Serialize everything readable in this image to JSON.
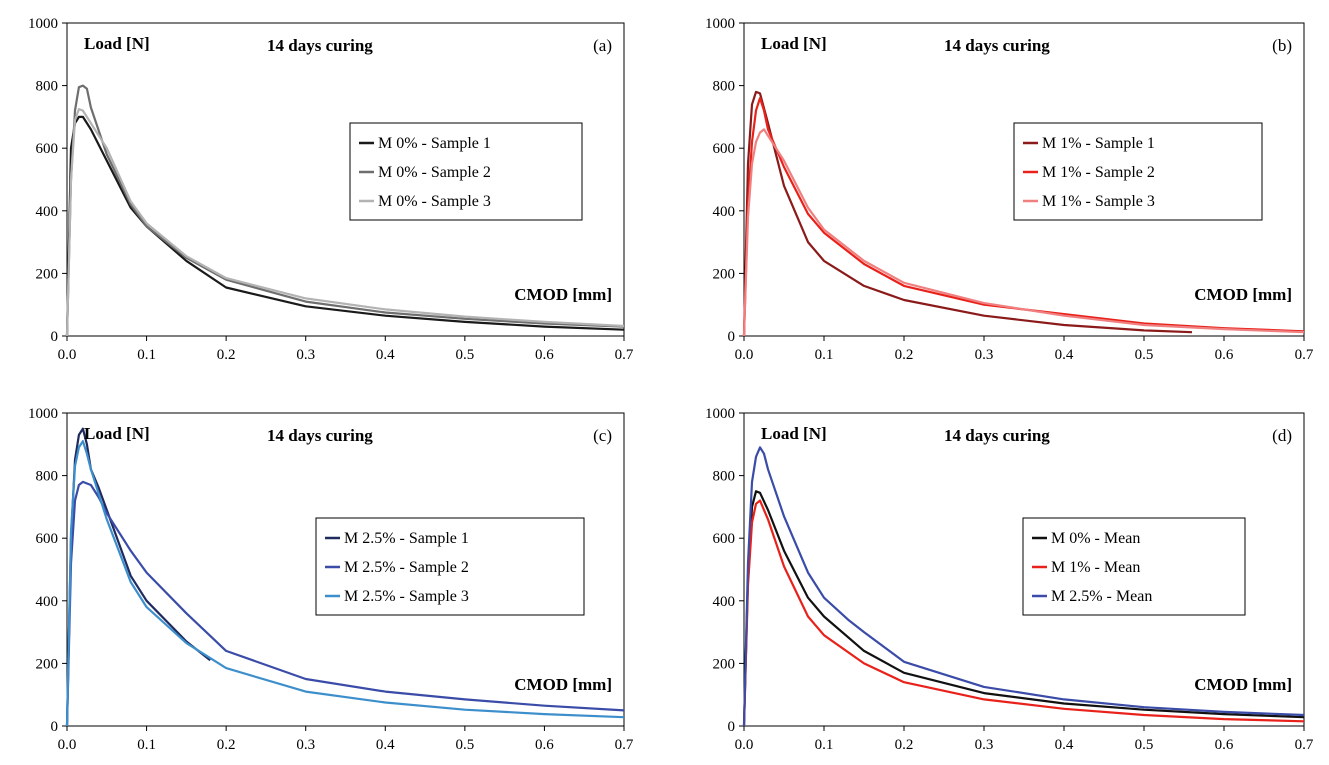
{
  "chart_data": [
    {
      "type": "line",
      "panel": "(a)",
      "title": "14 days curing",
      "ylabel": "Load [N]",
      "xlabel": "CMOD [mm]",
      "xlim": [
        0,
        0.7
      ],
      "ylim": [
        0,
        1000
      ],
      "xticks": [
        "0.0",
        "0.1",
        "0.2",
        "0.3",
        "0.4",
        "0.5",
        "0.6",
        "0.7"
      ],
      "yticks": [
        "0",
        "200",
        "400",
        "600",
        "800",
        "1000"
      ],
      "grid": false,
      "legend": "right-middle",
      "series": [
        {
          "name": "M 0% - Sample 1",
          "color": "#1a1a1a",
          "x": [
            0,
            0.005,
            0.01,
            0.015,
            0.02,
            0.03,
            0.05,
            0.08,
            0.1,
            0.15,
            0.2,
            0.3,
            0.4,
            0.5,
            0.6,
            0.7
          ],
          "y": [
            0,
            600,
            680,
            700,
            700,
            660,
            560,
            410,
            350,
            240,
            155,
            95,
            65,
            45,
            30,
            20
          ]
        },
        {
          "name": "M 0% - Sample 2",
          "color": "#6e6e6e",
          "x": [
            0,
            0.005,
            0.01,
            0.015,
            0.02,
            0.025,
            0.03,
            0.05,
            0.08,
            0.1,
            0.15,
            0.2,
            0.3,
            0.4,
            0.5,
            0.6,
            0.7
          ],
          "y": [
            0,
            500,
            720,
            795,
            800,
            790,
            730,
            580,
            420,
            350,
            250,
            180,
            110,
            75,
            55,
            40,
            30
          ]
        },
        {
          "name": "M 0% - Sample 3",
          "color": "#b3b3b3",
          "x": [
            0,
            0.005,
            0.01,
            0.015,
            0.02,
            0.03,
            0.04,
            0.05,
            0.08,
            0.1,
            0.15,
            0.2,
            0.3,
            0.4,
            0.5,
            0.6,
            0.7
          ],
          "y": [
            0,
            500,
            690,
            725,
            720,
            680,
            640,
            600,
            430,
            360,
            255,
            185,
            120,
            85,
            62,
            45,
            32
          ]
        }
      ]
    },
    {
      "type": "line",
      "panel": "(b)",
      "title": "14 days curing",
      "ylabel": "Load [N]",
      "xlabel": "CMOD [mm]",
      "xlim": [
        0,
        0.7
      ],
      "ylim": [
        0,
        1000
      ],
      "xticks": [
        "0.0",
        "0.1",
        "0.2",
        "0.3",
        "0.4",
        "0.5",
        "0.6",
        "0.7"
      ],
      "yticks": [
        "0",
        "200",
        "400",
        "600",
        "800",
        "1000"
      ],
      "grid": false,
      "legend": "right-middle",
      "series": [
        {
          "name": "M 1% - Sample 1",
          "color": "#8b1a1a",
          "x": [
            0,
            0.005,
            0.01,
            0.015,
            0.02,
            0.03,
            0.05,
            0.08,
            0.1,
            0.15,
            0.2,
            0.3,
            0.4,
            0.5,
            0.56
          ],
          "y": [
            0,
            550,
            740,
            780,
            775,
            680,
            480,
            300,
            240,
            160,
            115,
            65,
            35,
            18,
            12
          ]
        },
        {
          "name": "M 1% - Sample 2",
          "color": "#e8221b",
          "x": [
            0,
            0.005,
            0.01,
            0.015,
            0.02,
            0.025,
            0.03,
            0.05,
            0.08,
            0.1,
            0.15,
            0.2,
            0.3,
            0.4,
            0.5,
            0.6,
            0.7
          ],
          "y": [
            0,
            420,
            620,
            720,
            760,
            720,
            660,
            540,
            390,
            330,
            230,
            160,
            100,
            70,
            40,
            25,
            15
          ]
        },
        {
          "name": "M 1% - Sample 3",
          "color": "#f08080",
          "x": [
            0,
            0.005,
            0.01,
            0.015,
            0.02,
            0.025,
            0.03,
            0.05,
            0.08,
            0.1,
            0.15,
            0.2,
            0.3,
            0.4,
            0.5,
            0.6,
            0.7
          ],
          "y": [
            0,
            380,
            550,
            620,
            650,
            660,
            640,
            560,
            410,
            340,
            240,
            170,
            105,
            65,
            35,
            22,
            12
          ]
        }
      ]
    },
    {
      "type": "line",
      "panel": "(c)",
      "title": "14 days curing",
      "ylabel": "Load [N]",
      "xlabel": "CMOD [mm]",
      "xlim": [
        0,
        0.7
      ],
      "ylim": [
        0,
        1000
      ],
      "xticks": [
        "0.0",
        "0.1",
        "0.2",
        "0.3",
        "0.4",
        "0.5",
        "0.6",
        "0.7"
      ],
      "yticks": [
        "0",
        "200",
        "400",
        "600",
        "800",
        "1000"
      ],
      "grid": false,
      "legend": "right-middle",
      "series": [
        {
          "name": "M 2.5% - Sample 1",
          "color": "#1f2a5e",
          "x": [
            0,
            0.005,
            0.01,
            0.015,
            0.02,
            0.025,
            0.03,
            0.04,
            0.05,
            0.08,
            0.1,
            0.15,
            0.18
          ],
          "y": [
            0,
            600,
            850,
            930,
            950,
            900,
            820,
            760,
            690,
            480,
            400,
            270,
            210
          ]
        },
        {
          "name": "M 2.5% - Sample 2",
          "color": "#3a4ca8",
          "x": [
            0,
            0.005,
            0.01,
            0.015,
            0.02,
            0.03,
            0.04,
            0.05,
            0.08,
            0.1,
            0.15,
            0.2,
            0.3,
            0.4,
            0.5,
            0.6,
            0.7
          ],
          "y": [
            0,
            520,
            720,
            770,
            780,
            770,
            730,
            680,
            560,
            490,
            360,
            240,
            150,
            110,
            85,
            65,
            50
          ]
        },
        {
          "name": "M 2.5% - Sample 3",
          "color": "#3d8fcc",
          "x": [
            0,
            0.005,
            0.01,
            0.015,
            0.02,
            0.025,
            0.03,
            0.05,
            0.08,
            0.1,
            0.15,
            0.2,
            0.3,
            0.4,
            0.5,
            0.6,
            0.7
          ],
          "y": [
            0,
            620,
            830,
            890,
            910,
            870,
            820,
            660,
            460,
            380,
            265,
            185,
            110,
            75,
            52,
            38,
            28
          ]
        }
      ]
    },
    {
      "type": "line",
      "panel": "(d)",
      "title": "14 days curing",
      "ylabel": "Load [N]",
      "xlabel": "CMOD [mm]",
      "xlim": [
        0,
        0.7
      ],
      "ylim": [
        0,
        1000
      ],
      "xticks": [
        "0.0",
        "0.1",
        "0.2",
        "0.3",
        "0.4",
        "0.5",
        "0.6",
        "0.7"
      ],
      "yticks": [
        "0",
        "200",
        "400",
        "600",
        "800",
        "1000"
      ],
      "grid": false,
      "legend": "right-middle",
      "series": [
        {
          "name": "M 0% - Mean",
          "color": "#111111",
          "x": [
            0,
            0.005,
            0.01,
            0.015,
            0.02,
            0.03,
            0.05,
            0.08,
            0.1,
            0.15,
            0.2,
            0.3,
            0.4,
            0.5,
            0.6,
            0.7
          ],
          "y": [
            0,
            480,
            700,
            750,
            745,
            690,
            560,
            410,
            350,
            240,
            170,
            105,
            72,
            52,
            38,
            28
          ]
        },
        {
          "name": "M 1% - Mean",
          "color": "#e8221b",
          "x": [
            0,
            0.005,
            0.01,
            0.015,
            0.02,
            0.03,
            0.05,
            0.08,
            0.1,
            0.15,
            0.2,
            0.3,
            0.4,
            0.5,
            0.6,
            0.7
          ],
          "y": [
            0,
            450,
            650,
            710,
            720,
            660,
            510,
            350,
            290,
            200,
            140,
            85,
            55,
            35,
            22,
            15
          ]
        },
        {
          "name": "M 2.5% - Mean",
          "color": "#3a4ca8",
          "x": [
            0,
            0.005,
            0.01,
            0.015,
            0.02,
            0.025,
            0.03,
            0.05,
            0.08,
            0.1,
            0.13,
            0.15,
            0.2,
            0.3,
            0.4,
            0.5,
            0.6,
            0.7
          ],
          "y": [
            0,
            520,
            780,
            860,
            890,
            870,
            820,
            670,
            490,
            410,
            340,
            300,
            205,
            125,
            85,
            60,
            45,
            35
          ]
        }
      ]
    }
  ]
}
